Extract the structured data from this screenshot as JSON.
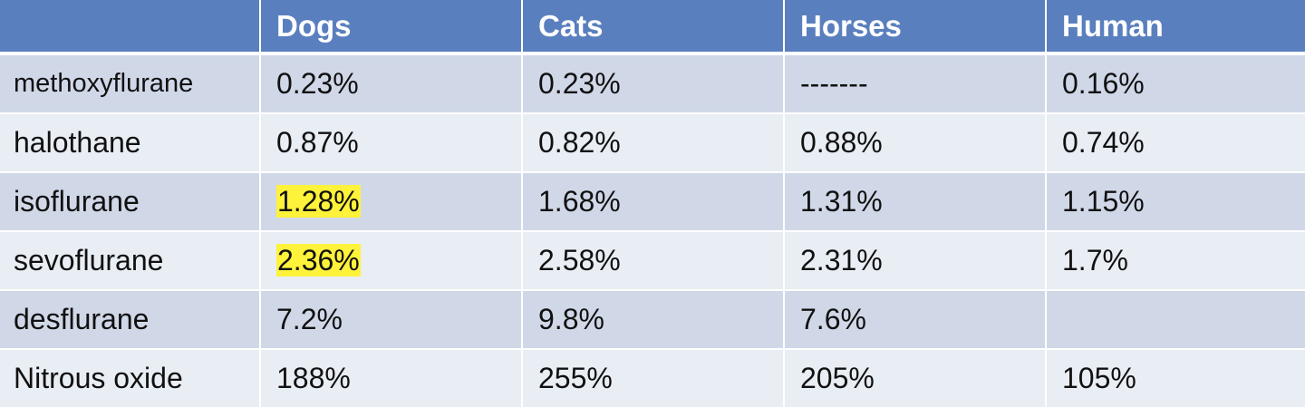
{
  "table": {
    "headers": [
      "",
      "Dogs",
      "Cats",
      "Horses",
      "Human"
    ],
    "rows": [
      {
        "label": "methoxyflurane",
        "dogs": "0.23%",
        "cats": "0.23%",
        "horses": "-------",
        "human": "0.16%"
      },
      {
        "label": "halothane",
        "dogs": "0.87%",
        "cats": "0.82%",
        "horses": "0.88%",
        "human": "0.74%"
      },
      {
        "label": "isoflurane",
        "dogs": "1.28%",
        "cats": "1.68%",
        "horses": "1.31%",
        "human": "1.15%"
      },
      {
        "label": "sevoflurane",
        "dogs": "2.36%",
        "cats": "2.58%",
        "horses": "2.31%",
        "human": "1.7%"
      },
      {
        "label": "desflurane",
        "dogs": "7.2%",
        "cats": "9.8%",
        "horses": "7.6%",
        "human": ""
      },
      {
        "label": "Nitrous oxide",
        "dogs": "188%",
        "cats": "255%",
        "horses": "205%",
        "human": "105%"
      }
    ],
    "highlight_color": "#fff23a",
    "header_color": "#5a7fbe",
    "row_color_odd": "#d0d8e8",
    "row_color_even": "#e9edf4"
  }
}
